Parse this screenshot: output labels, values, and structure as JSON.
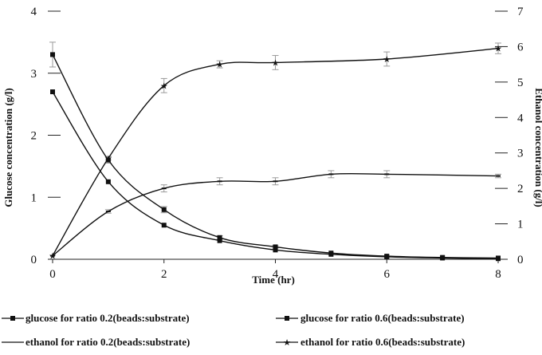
{
  "chart_data": {
    "type": "line",
    "title": "",
    "xlabel": "Time (hr)",
    "ylabel_left": "Glucose concentration (g/l)",
    "ylabel_right": "Ethanol concentration (g/l)",
    "xlim": [
      0,
      8
    ],
    "ylim_left": [
      0,
      4
    ],
    "ylim_right": [
      0,
      7
    ],
    "x_ticks": [
      "0",
      "2",
      "4",
      "6",
      "8"
    ],
    "y_ticks_left": [
      "0",
      "1",
      "2",
      "3",
      "4"
    ],
    "y_ticks_right": [
      "0",
      "1",
      "2",
      "3",
      "4",
      "5",
      "6",
      "7"
    ],
    "grid": false,
    "legend_position": "bottom",
    "series": [
      {
        "name": "glucose for ratio 0.2(beads:substrate)",
        "axis": "left",
        "marker": "square",
        "x": [
          0,
          1,
          2,
          3,
          4,
          5,
          6,
          7,
          8
        ],
        "y": [
          2.7,
          1.25,
          0.55,
          0.3,
          0.15,
          0.08,
          0.04,
          0.02,
          0.01
        ]
      },
      {
        "name": "glucose for ratio 0.6(beads:substrate)",
        "axis": "left",
        "marker": "square",
        "x": [
          0,
          1,
          2,
          3,
          4,
          5,
          6,
          7,
          8
        ],
        "y": [
          3.3,
          1.6,
          0.8,
          0.35,
          0.2,
          0.1,
          0.05,
          0.03,
          0.02
        ],
        "error": [
          0.2,
          0.05,
          0.05,
          0.03,
          0.02,
          0.01,
          0.01,
          0.01,
          0.01
        ]
      },
      {
        "name": "ethanol for ratio 0.2(beads:substrate)",
        "axis": "right",
        "marker": "dash",
        "x": [
          0,
          1,
          2,
          3,
          4,
          5,
          6,
          8
        ],
        "y": [
          0.1,
          1.35,
          2.0,
          2.2,
          2.2,
          2.4,
          2.4,
          2.35
        ],
        "error": [
          0.02,
          0.05,
          0.1,
          0.1,
          0.1,
          0.1,
          0.1,
          0.05
        ]
      },
      {
        "name": "ethanol for ratio 0.6(beads:substrate)",
        "axis": "right",
        "marker": "star",
        "x": [
          0,
          1,
          2,
          3,
          4,
          6,
          8
        ],
        "y": [
          0.1,
          2.85,
          4.9,
          5.5,
          5.55,
          5.65,
          5.95
        ],
        "error": [
          0.02,
          0.05,
          0.2,
          0.1,
          0.2,
          0.2,
          0.15
        ]
      }
    ]
  }
}
